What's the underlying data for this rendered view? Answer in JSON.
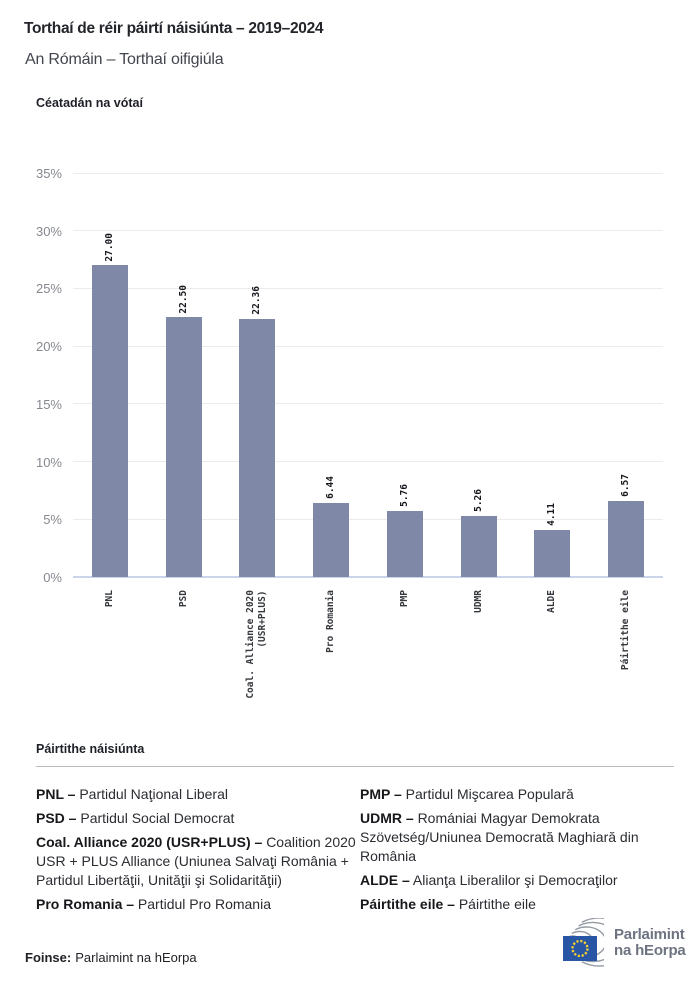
{
  "header": {
    "title": "Torthaí de réir páirtí náisiúnta – 2019–2024",
    "subtitle": "An Rómáin – Torthaí oifigiúla"
  },
  "chart_data": {
    "type": "bar",
    "title": "Céatadán na vótaí",
    "categories": [
      "PNL",
      "PSD",
      "Coal. Alliance 2020\n(USR+PLUS)",
      "Pro Romania",
      "PMP",
      "UDMR",
      "ALDE",
      "Páirtithe eile"
    ],
    "values": [
      27.0,
      22.5,
      22.36,
      6.44,
      5.76,
      5.26,
      4.11,
      6.57
    ],
    "value_labels": [
      "27.00",
      "22.50",
      "22.36",
      "6.44",
      "5.76",
      "5.26",
      "4.11",
      "6.57"
    ],
    "yticks": [
      0,
      5,
      10,
      15,
      20,
      25,
      30,
      35
    ],
    "ytick_labels": [
      "0%",
      "5%",
      "10%",
      "15%",
      "20%",
      "25%",
      "30%",
      "35%"
    ],
    "ylim": [
      0,
      35
    ],
    "grid": true,
    "legend_position": "none",
    "xlabel": "",
    "ylabel": "",
    "bar_color": "#7f88a6"
  },
  "legend": {
    "heading": "Páirtithe náisiúnta",
    "columns": [
      [
        {
          "key": "PNL –",
          "desc": "Partidul Naţional Liberal"
        },
        {
          "key": "PSD –",
          "desc": "Partidul Social Democrat"
        },
        {
          "key": "Coal. Alliance 2020 (USR+PLUS) –",
          "desc": "Coalition 2020 USR + PLUS Alliance (Uniunea Salvaţi România + Partidul Libertăţii, Unităţii şi Solidarităţii)"
        },
        {
          "key": "Pro Romania –",
          "desc": "Partidul Pro Romania"
        }
      ],
      [
        {
          "key": "PMP –",
          "desc": "Partidul Mişcarea Populară"
        },
        {
          "key": "UDMR –",
          "desc": "Romániai Magyar Demokrata Szövetség/Uniunea Democrată Maghiară din România"
        },
        {
          "key": "ALDE –",
          "desc": "Alianţa Liberalilor şi Democraţilor"
        },
        {
          "key": "Páirtithe eile –",
          "desc": "Páirtithe eile"
        }
      ]
    ]
  },
  "footer": {
    "source_label": "Foinse:",
    "source_value": "Parlaimint na hEorpa",
    "logo_line1": "Parlaimint",
    "logo_line2": "na hEorpa",
    "logo_colors": {
      "arcs": "#959ba4",
      "flag": "#2855a4",
      "stars": "#f8d12e",
      "text": "#6d7380"
    }
  }
}
